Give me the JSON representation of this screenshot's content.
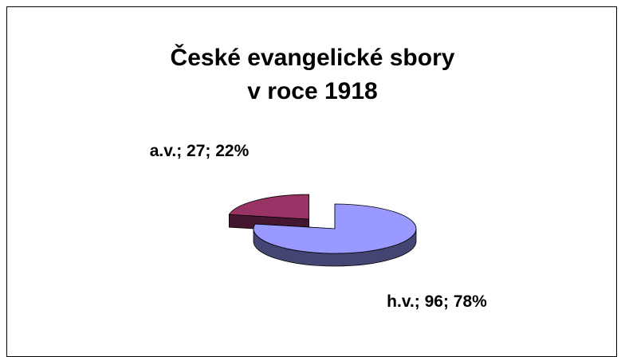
{
  "chart_data": {
    "type": "pie3d",
    "title": "České evangelické sbory v roce 1918",
    "categories": [
      "h.v.",
      "a.v."
    ],
    "values": [
      96,
      27
    ],
    "value_labels": [
      "h.v.; 96; 78%",
      "a.v.; 27; 22%"
    ],
    "colors": [
      "#9999ff",
      "#993366"
    ],
    "explode": [
      false,
      true
    ]
  }
}
